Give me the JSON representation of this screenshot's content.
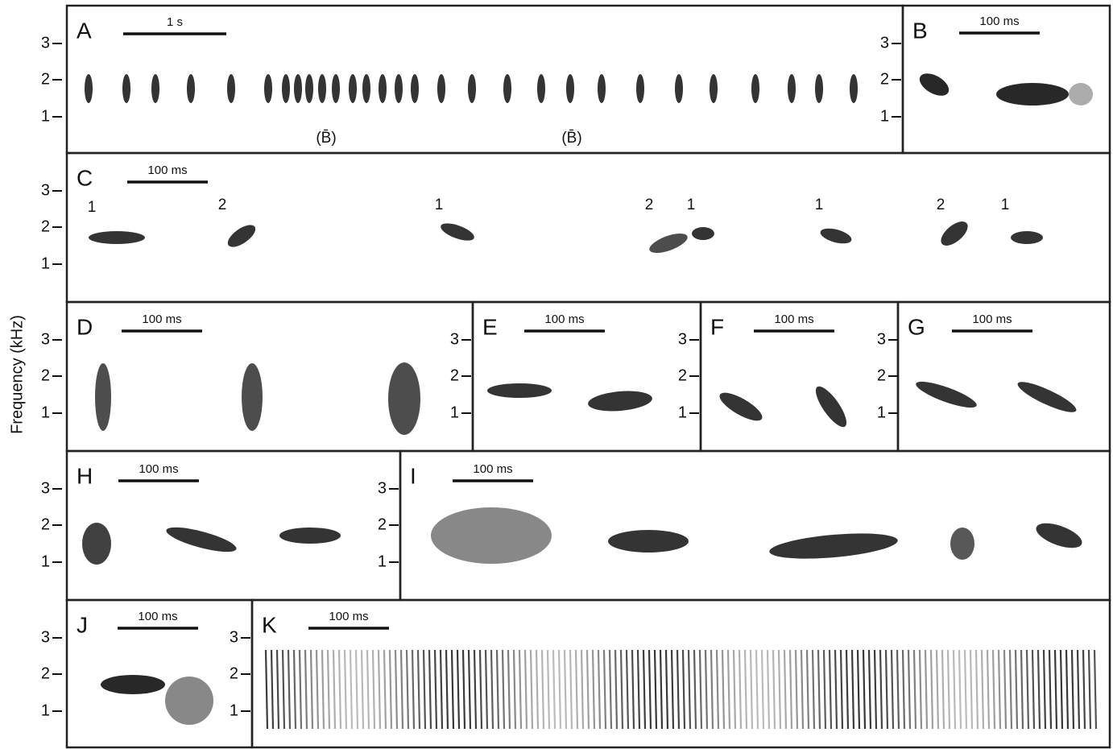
{
  "y_axis_label": "Frequency (kHz)",
  "panels": [
    {
      "label": "A",
      "scale_bar": "1 s",
      "ticks": [
        1,
        2,
        3
      ],
      "annotations": [
        "(B̄)",
        "(B̄)"
      ]
    },
    {
      "label": "B",
      "scale_bar": "100 ms",
      "ticks": [
        1,
        2,
        3
      ]
    },
    {
      "label": "C",
      "scale_bar": "100 ms",
      "ticks": [
        1,
        2,
        3
      ],
      "annotations": [
        "1",
        "2",
        "1",
        "2",
        "1",
        "1",
        "2",
        "1"
      ]
    },
    {
      "label": "D",
      "scale_bar": "100 ms",
      "ticks": [
        1,
        2,
        3
      ]
    },
    {
      "label": "E",
      "scale_bar": "100 ms",
      "ticks": [
        1,
        2,
        3
      ]
    },
    {
      "label": "F",
      "scale_bar": "100 ms",
      "ticks": [
        1,
        2,
        3
      ]
    },
    {
      "label": "G",
      "scale_bar": "100 ms",
      "ticks": [
        1,
        2,
        3
      ]
    },
    {
      "label": "H",
      "scale_bar": "100 ms",
      "ticks": [
        1,
        2,
        3
      ]
    },
    {
      "label": "I",
      "scale_bar": "100 ms",
      "ticks": [
        1,
        2,
        3
      ]
    },
    {
      "label": "J",
      "scale_bar": "100 ms",
      "ticks": [
        1,
        2,
        3
      ]
    },
    {
      "label": "K",
      "scale_bar": "100 ms",
      "ticks": [
        1,
        2,
        3
      ]
    }
  ]
}
